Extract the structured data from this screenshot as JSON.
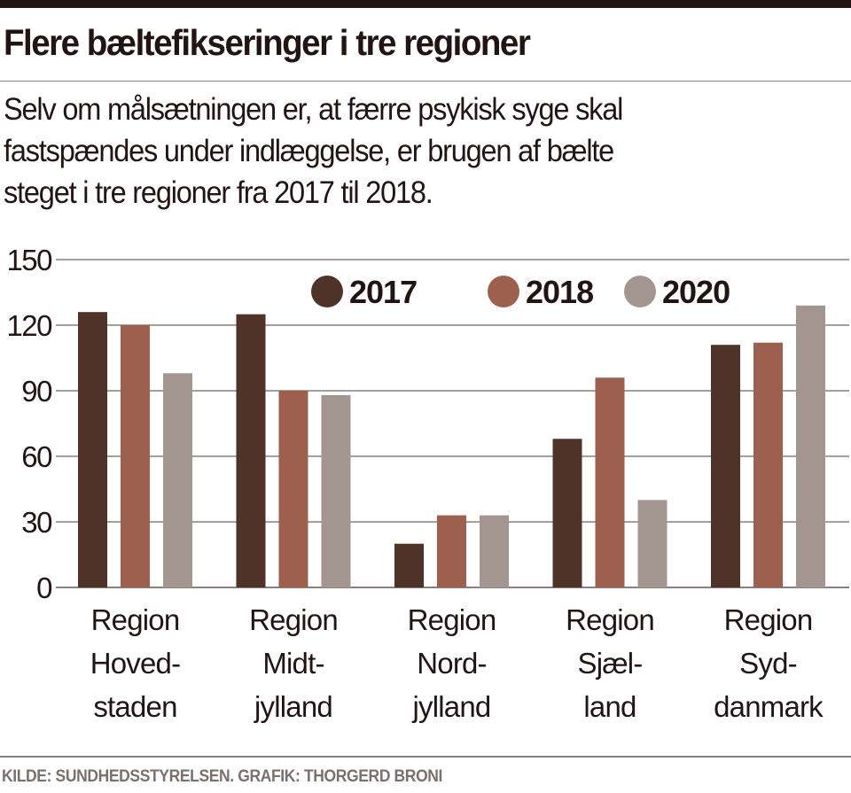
{
  "header": {
    "title": "Flere bæltefikseringer i tre regioner",
    "subtitle": "Selv om målsætningen er, at færre psykisk syge skal\nfastspændes under indlæggelse, er brugen af bælte\nsteget i tre regioner fra 2017 til 2018."
  },
  "footer": {
    "source": "KILDE: SUNDHEDSSTYRELSEN. GRAFIK: THORGERD BRONI"
  },
  "colors": {
    "text": "#231414",
    "grid": "#8a7f7d",
    "series_2017": "#4f3228",
    "series_2018": "#9d604e",
    "series_2020": "#a39690"
  },
  "chart_data": {
    "type": "bar",
    "title": "Flere bæltefikseringer i tre regioner",
    "xlabel": "",
    "ylabel": "",
    "ylim": [
      0,
      150
    ],
    "yticks": [
      0,
      30,
      60,
      90,
      120,
      150
    ],
    "grid": true,
    "legend_position": "top-right",
    "categories": [
      [
        "Region",
        "Hoved-",
        "staden"
      ],
      [
        "Region",
        "Midt-",
        "jylland"
      ],
      [
        "Region",
        "Nord-",
        "jylland"
      ],
      [
        "Region",
        "Sjæl-",
        "land"
      ],
      [
        "Region",
        "Syd-",
        "danmark"
      ]
    ],
    "series": [
      {
        "name": "2017",
        "color": "#4f3228",
        "values": [
          126,
          125,
          20,
          68,
          111
        ]
      },
      {
        "name": "2018",
        "color": "#9d604e",
        "values": [
          120,
          90,
          33,
          96,
          112
        ]
      },
      {
        "name": "2020",
        "color": "#a39690",
        "values": [
          98,
          88,
          33,
          40,
          129
        ]
      }
    ]
  }
}
